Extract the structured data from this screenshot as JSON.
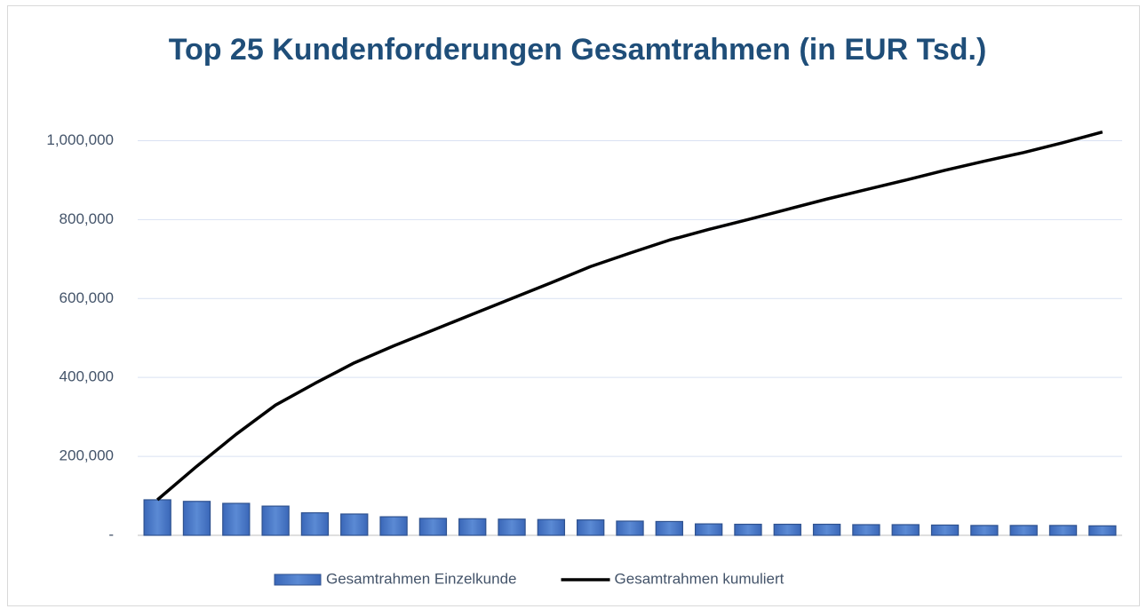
{
  "chart_data": {
    "type": "bar",
    "title": "Top 25 Kundenforderungen Gesamtrahmen (in EUR Tsd.)",
    "categories": [
      null,
      null,
      null,
      null,
      null,
      null,
      null,
      null,
      null,
      null,
      null,
      null,
      null,
      null,
      null,
      null,
      null,
      null,
      null,
      null,
      null,
      null,
      null,
      null,
      null
    ],
    "series": [
      {
        "name": "Gesamtrahmen Einzelkunde",
        "type": "bar",
        "color": "#4472c4",
        "values": [
          90000,
          86000,
          81000,
          74000,
          57000,
          54000,
          47000,
          43000,
          42000,
          41000,
          40000,
          39000,
          36000,
          35000,
          29000,
          28000,
          28000,
          28000,
          27000,
          27000,
          26000,
          25000,
          25000,
          25000,
          24000
        ]
      },
      {
        "name": "Gesamtrahmen kumuliert",
        "type": "line",
        "color": "#000000",
        "values": [
          90000,
          175000,
          256000,
          330000,
          385000,
          437000,
          480000,
          520000,
          560000,
          600000,
          640000,
          681000,
          715000,
          748000,
          775000,
          800000,
          826000,
          852000,
          876000,
          900000,
          925000,
          948000,
          970000,
          995000,
          1022000
        ]
      }
    ],
    "ylim": [
      0,
      1100000
    ],
    "yticks": [
      {
        "value": 0,
        "label": "-"
      },
      {
        "value": 200000,
        "label": "200,000"
      },
      {
        "value": 400000,
        "label": "400,000"
      },
      {
        "value": 600000,
        "label": "600,000"
      },
      {
        "value": 800000,
        "label": "800,000"
      },
      {
        "value": 1000000,
        "label": "1,000,000"
      }
    ],
    "grid": true,
    "legend": "bottom"
  }
}
